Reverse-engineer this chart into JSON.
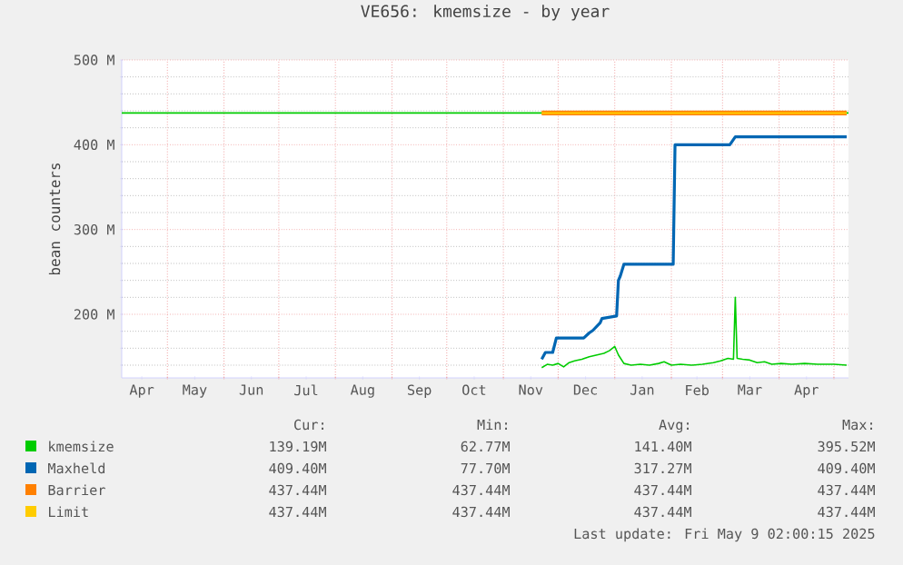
{
  "chart_data": {
    "type": "line",
    "title": "VE656: kmemsize - by year",
    "ylabel": "bean counters",
    "xlim": [
      "2024-04-06",
      "2025-05-09"
    ],
    "xticks": [
      {
        "value": "2024-04-17",
        "label": "Apr"
      },
      {
        "value": "2024-05-16",
        "label": "May"
      },
      {
        "value": "2024-06-16",
        "label": "Jun"
      },
      {
        "value": "2024-07-16",
        "label": "Jul"
      },
      {
        "value": "2024-08-16",
        "label": "Aug"
      },
      {
        "value": "2024-09-16",
        "label": "Sep"
      },
      {
        "value": "2024-10-16",
        "label": "Oct"
      },
      {
        "value": "2024-11-16",
        "label": "Nov"
      },
      {
        "value": "2024-12-16",
        "label": "Dec"
      },
      {
        "value": "2025-01-16",
        "label": "Jan"
      },
      {
        "value": "2025-02-15",
        "label": "Feb"
      },
      {
        "value": "2025-03-16",
        "label": "Mar"
      },
      {
        "value": "2025-04-16",
        "label": "Apr"
      },
      {
        "value": "2024-05-01",
        "label": null
      },
      {
        "value": "2024-06-01",
        "label": null
      },
      {
        "value": "2024-07-01",
        "label": null
      },
      {
        "value": "2024-08-01",
        "label": null
      },
      {
        "value": "2024-09-01",
        "label": null
      },
      {
        "value": "2024-10-01",
        "label": null
      },
      {
        "value": "2024-11-01",
        "label": null
      },
      {
        "value": "2024-12-01",
        "label": null
      },
      {
        "value": "2025-01-01",
        "label": null
      },
      {
        "value": "2025-02-01",
        "label": null
      },
      {
        "value": "2025-03-01",
        "label": null
      },
      {
        "value": "2025-04-01",
        "label": null
      },
      {
        "value": "2025-05-01",
        "label": null
      }
    ],
    "ylim": [
      125,
      500
    ],
    "yticks": [
      {
        "value": 200,
        "label": "200 M"
      },
      {
        "value": 300,
        "label": "300 M"
      },
      {
        "value": 400,
        "label": "400 M"
      },
      {
        "value": 500,
        "label": "500 M"
      },
      {
        "value": 140,
        "label": null
      },
      {
        "value": 160,
        "label": null
      },
      {
        "value": 180,
        "label": null
      },
      {
        "value": 220,
        "label": null
      },
      {
        "value": 240,
        "label": null
      },
      {
        "value": 260,
        "label": null
      },
      {
        "value": 280,
        "label": null
      },
      {
        "value": 320,
        "label": null
      },
      {
        "value": 340,
        "label": null
      },
      {
        "value": 360,
        "label": null
      },
      {
        "value": 380,
        "label": null
      },
      {
        "value": 420,
        "label": null
      },
      {
        "value": 440,
        "label": null
      },
      {
        "value": 460,
        "label": null
      },
      {
        "value": 480,
        "label": null
      }
    ],
    "grid": true,
    "legend": "bottom",
    "ref_lines": [
      {
        "axis": "y",
        "value": 437.44,
        "color": "#00cc00"
      }
    ],
    "series": [
      {
        "name": "kmemsize",
        "color": "#00cc00",
        "x": [
          "2024-11-22",
          "2024-11-25",
          "2024-11-28",
          "2024-12-01",
          "2024-12-04",
          "2024-12-07",
          "2024-12-10",
          "2024-12-14",
          "2024-12-18",
          "2024-12-22",
          "2024-12-26",
          "2024-12-29",
          "2025-01-01",
          "2025-01-03",
          "2025-01-06",
          "2025-01-10",
          "2025-01-15",
          "2025-01-20",
          "2025-01-25",
          "2025-01-28",
          "2025-02-01",
          "2025-02-06",
          "2025-02-12",
          "2025-02-18",
          "2025-02-24",
          "2025-02-28",
          "2025-03-04",
          "2025-03-07",
          "2025-03-08",
          "2025-03-09",
          "2025-03-12",
          "2025-03-16",
          "2025-03-20",
          "2025-03-24",
          "2025-03-28",
          "2025-04-02",
          "2025-04-08",
          "2025-04-15",
          "2025-04-22",
          "2025-05-01",
          "2025-05-08"
        ],
        "values": [
          137,
          141,
          140,
          142,
          138,
          143,
          145,
          147,
          150,
          152,
          154,
          157,
          162,
          152,
          142,
          140,
          141,
          140,
          142,
          144,
          140,
          141,
          140,
          141,
          143,
          145,
          148,
          147,
          220,
          148,
          147,
          146,
          143,
          144,
          141,
          142,
          141,
          142,
          141,
          141,
          140
        ]
      },
      {
        "name": "Maxheld",
        "color": "#0066b3",
        "x": [
          "2024-11-22",
          "2024-11-24",
          "2024-11-28",
          "2024-11-30",
          "2024-12-15",
          "2024-12-18",
          "2024-12-20",
          "2024-12-24",
          "2024-12-25",
          "2025-01-02",
          "2025-01-03",
          "2025-01-04",
          "2025-01-06",
          "2025-02-02",
          "2025-02-03",
          "2025-03-05",
          "2025-03-08",
          "2025-05-08"
        ],
        "values": [
          147,
          155,
          155,
          172,
          172,
          178,
          181,
          190,
          195,
          198,
          240,
          245,
          259,
          259,
          400,
          400,
          409.4,
          409.4
        ]
      },
      {
        "name": "Barrier",
        "color": "#ff8000",
        "x": [
          "2024-11-22",
          "2025-05-08"
        ],
        "values": [
          437.44,
          437.44
        ]
      },
      {
        "name": "Limit",
        "color": "#ffcc00",
        "x": [
          "2024-11-22",
          "2025-05-08"
        ],
        "values": [
          437.44,
          437.44
        ]
      }
    ],
    "annotations": [
      "Cur:",
      "Min:",
      "Avg:",
      "Max:",
      "139.19M",
      "62.77M",
      "141.40M",
      "395.52M",
      "409.40M",
      "77.70M",
      "317.27M",
      "409.40M",
      "437.44M",
      "437.44M",
      "437.44M",
      "437.44M",
      "437.44M",
      "437.44M",
      "437.44M",
      "437.44M",
      "Last update: Fri May  9 02:00:15 2025"
    ]
  }
}
